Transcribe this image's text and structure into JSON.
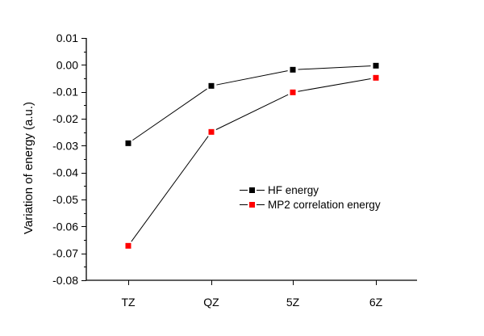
{
  "chart_data": {
    "type": "line",
    "title": "",
    "xlabel": "",
    "ylabel": "Variation of energy (a.u.)",
    "categories": [
      "TZ",
      "QZ",
      "5Z",
      "6Z"
    ],
    "ylim": [
      -0.08,
      0.01
    ],
    "yticks": [
      0.01,
      0.0,
      -0.01,
      -0.02,
      -0.03,
      -0.04,
      -0.05,
      -0.06,
      -0.07,
      -0.08
    ],
    "ytick_labels": [
      "0.01",
      "0.00",
      "-0.01",
      "-0.02",
      "-0.03",
      "-0.04",
      "-0.05",
      "-0.06",
      "-0.07",
      "-0.08"
    ],
    "minor_tick_step": 0.005,
    "grid": false,
    "legend_position": "center-right",
    "series": [
      {
        "name": "HF energy",
        "color": "#000000",
        "marker": "square",
        "values": [
          -0.0291,
          -0.0078,
          -0.0018,
          -0.0003
        ]
      },
      {
        "name": "MP2 correlation energy",
        "color": "#ff0000",
        "marker": "square",
        "values": [
          -0.0672,
          -0.0249,
          -0.0102,
          -0.0048
        ]
      }
    ],
    "line_color": "#000000"
  }
}
